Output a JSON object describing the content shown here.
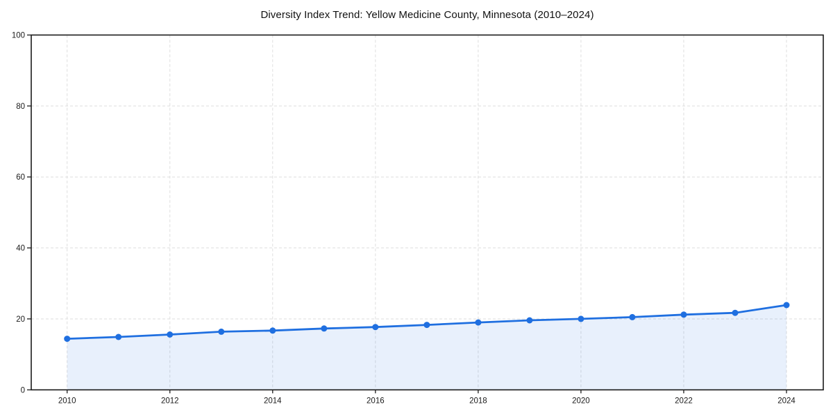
{
  "chart_data": {
    "type": "line",
    "title": "Diversity Index Trend: Yellow Medicine County, Minnesota (2010–2024)",
    "x": [
      2010,
      2011,
      2012,
      2013,
      2014,
      2015,
      2016,
      2017,
      2018,
      2019,
      2020,
      2021,
      2022,
      2023,
      2024
    ],
    "values": [
      14.4,
      14.9,
      15.6,
      16.4,
      16.7,
      17.3,
      17.7,
      18.3,
      19.0,
      19.6,
      20.0,
      20.5,
      21.2,
      21.7,
      23.9
    ],
    "xlabel": "",
    "ylabel": "",
    "ylim": [
      0,
      100
    ],
    "yticks": [
      0,
      20,
      40,
      60,
      80,
      100
    ],
    "xticks": [
      2010,
      2012,
      2014,
      2016,
      2018,
      2020,
      2022,
      2024
    ],
    "grid": true,
    "grid_style": "dashed",
    "legend": false,
    "area_fill": true,
    "marker": "circle",
    "colors": {
      "line": "#1f6fe0",
      "marker": "#1f6fe0",
      "fill": "rgba(31,111,224,0.10)",
      "grid": "#dedede",
      "axis": "#1a1a1a",
      "tick_label": "#1a1a1a",
      "title": "#111111",
      "background": "#ffffff"
    }
  }
}
